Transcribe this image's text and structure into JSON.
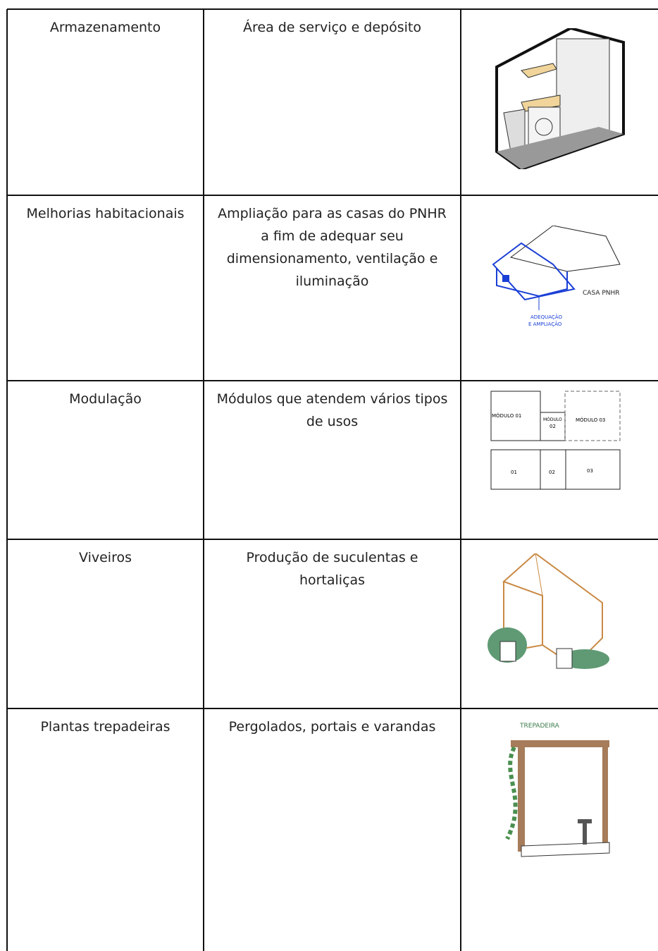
{
  "table": {
    "rows": [
      {
        "cells": [
          "Armazenamento",
          "Área de serviço e depósito"
        ]
      },
      {
        "cells": [
          "Melhorias habitacionais",
          "Ampliação para as casas do PNHR a fim de adequar seu dimensionamento, ventilação e iluminação"
        ],
        "image_labels": [
          "CASA PNHR",
          "ADEQUAÇÃO",
          "E AMPLIAÇÃO"
        ]
      },
      {
        "cells": [
          "Modulação",
          "Módulos que atendem vários tipos de usos"
        ],
        "image_labels": [
          "MÓDULO 01",
          "MÓDULO",
          "02",
          "MÓDULO 03",
          "01",
          "02",
          "03"
        ]
      },
      {
        "cells": [
          "Viveiros",
          "Produção de suculentas e hortaliças"
        ]
      },
      {
        "cells": [
          "Plantas trepadeiras",
          "Pergolados, portais e varandas"
        ],
        "image_labels": [
          "TREPADEIRA"
        ]
      }
    ]
  }
}
